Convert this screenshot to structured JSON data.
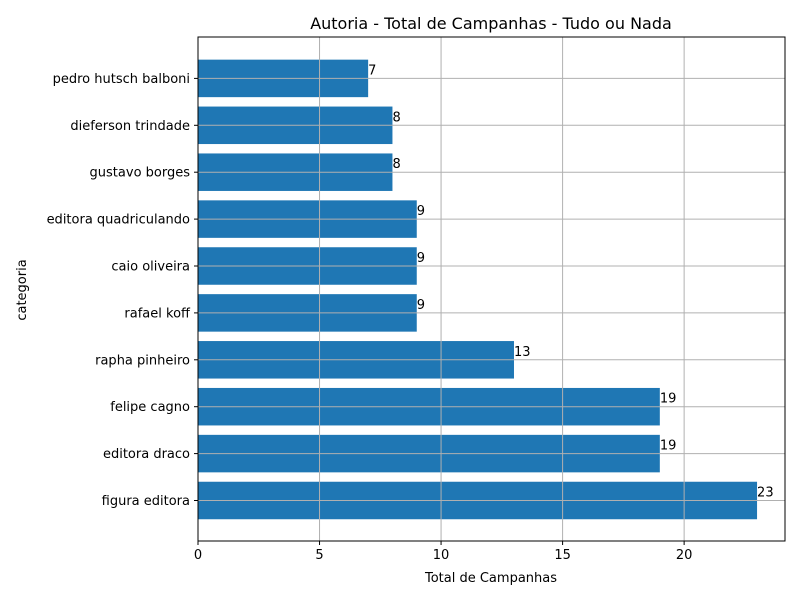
{
  "chart_data": {
    "type": "bar",
    "orientation": "horizontal",
    "title": "Autoria - Total de Campanhas - Tudo ou Nada",
    "xlabel": "Total de Campanhas",
    "ylabel": "categoria",
    "categories": [
      "figura editora",
      "editora draco",
      "felipe cagno",
      "rapha pinheiro",
      "rafael koff",
      "caio oliveira",
      "editora quadriculando",
      "gustavo borges",
      "dieferson trindade",
      "pedro hutsch balboni"
    ],
    "values": [
      23,
      19,
      19,
      13,
      9,
      9,
      9,
      8,
      8,
      7
    ],
    "data_labels": [
      "23",
      "19",
      "19",
      "13",
      "9",
      "9",
      "9",
      "8",
      "8",
      "7"
    ],
    "x_ticks": [
      "0",
      "5",
      "10",
      "15",
      "20"
    ],
    "xlim": [
      0,
      24.15
    ],
    "grid": true,
    "bar_color": "#1f77b4"
  }
}
